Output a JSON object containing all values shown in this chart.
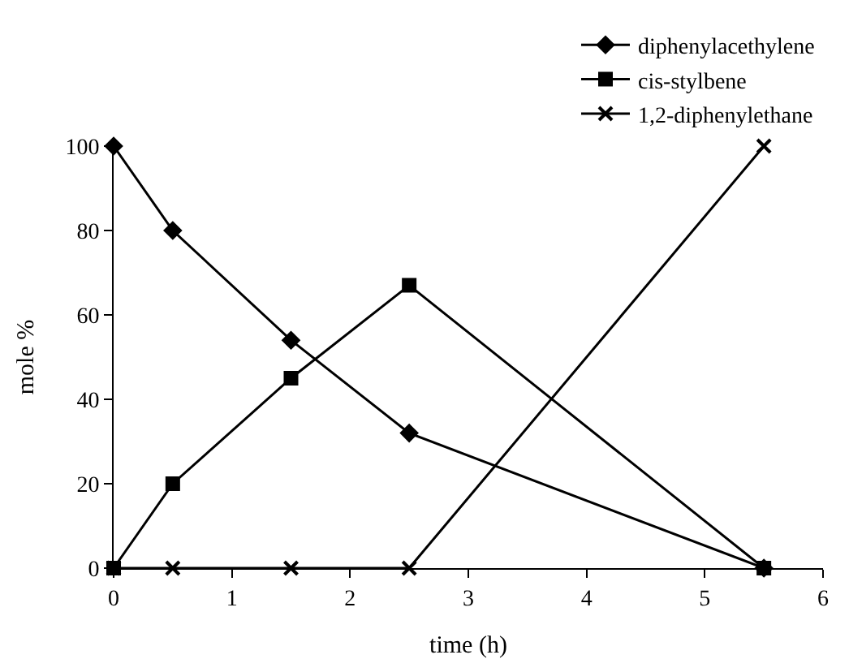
{
  "chart_data": {
    "type": "line",
    "xlabel": "time (h)",
    "ylabel": "mole %",
    "x": [
      0,
      0.5,
      1.5,
      2.5,
      5.5
    ],
    "series": [
      {
        "name": "diphenylacethylene",
        "color": "#000000",
        "marker": "diamond",
        "values": [
          100,
          80,
          54,
          32,
          0
        ]
      },
      {
        "name": "cis-stylbene",
        "color": "#000000",
        "marker": "square",
        "values": [
          0,
          20,
          45,
          67,
          0
        ]
      },
      {
        "name": "1,2-diphenylethane",
        "color": "#000000",
        "marker": "cross",
        "values": [
          0,
          0,
          0,
          0,
          100
        ]
      }
    ],
    "xlim": [
      0,
      6
    ],
    "xticks": [
      0,
      1,
      2,
      3,
      4,
      5,
      6
    ],
    "ylim": [
      0,
      100
    ],
    "yticks": [
      0,
      20,
      40,
      60,
      80,
      100
    ],
    "legend": "top right",
    "line_style": "solid"
  }
}
